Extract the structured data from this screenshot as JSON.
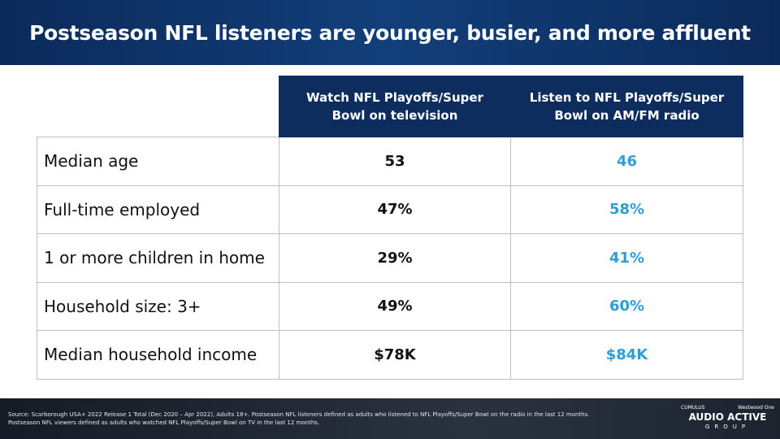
{
  "header": {
    "title": "Postseason NFL listeners are younger, busier, and more affluent"
  },
  "table": {
    "column_headers": [
      "Watch NFL Playoffs/Super Bowl on television",
      "Listen to NFL Playoffs/Super Bowl on AM/FM radio"
    ],
    "rows": [
      [
        "Median age",
        "53",
        "46"
      ],
      [
        "Full-time employed",
        "47%",
        "58%"
      ],
      [
        "1 or more children in home",
        "29%",
        "41%"
      ],
      [
        "Household size: 3+",
        "49%",
        "60%"
      ],
      [
        "Median household income",
        "$78K",
        "$84K"
      ]
    ]
  },
  "footer": {
    "source": "Source: Scarborough USA+ 2022 Release 1 Total (Dec 2020 – Apr 2022), Adults 18+. Postseason NFL listeners defined as adults who listened to NFL Playoffs/Super Bowl on the radio in the last 12 months. Postseason NFL viewers defined as adults who watched NFL Playoffs/Super Bowl on TV in the last 12 months.",
    "logo_top_left": "CUMULUS",
    "logo_top_right": "Westwood One",
    "logo_main": "AUDIO ACTIVE",
    "logo_sub": "GROUP"
  }
}
